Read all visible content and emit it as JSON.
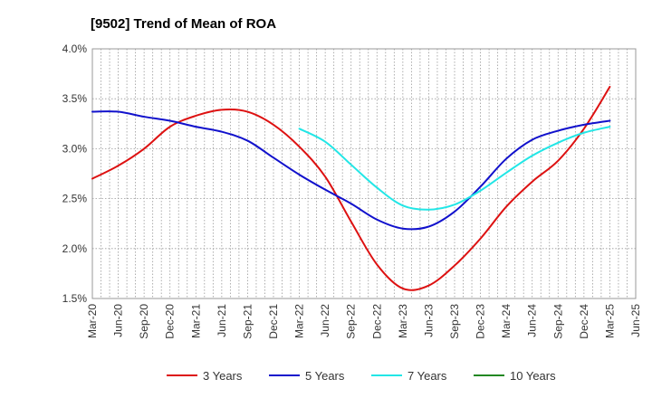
{
  "chart_data": {
    "type": "line",
    "title": "[9502]  Trend of Mean of ROA",
    "xlabel": "",
    "ylabel": "",
    "x_ticks": [
      "Mar-20",
      "Jun-20",
      "Sep-20",
      "Dec-20",
      "Mar-21",
      "Jun-21",
      "Sep-21",
      "Dec-21",
      "Mar-22",
      "Jun-22",
      "Sep-22",
      "Dec-22",
      "Mar-23",
      "Jun-23",
      "Sep-23",
      "Dec-23",
      "Mar-24",
      "Jun-24",
      "Sep-24",
      "Dec-24",
      "Mar-25",
      "Jun-25"
    ],
    "y_ticks": [
      {
        "value": 4.0,
        "label": "4.0%"
      },
      {
        "value": 3.5,
        "label": "3.5%"
      },
      {
        "value": 3.0,
        "label": "3.0%"
      },
      {
        "value": 2.5,
        "label": "2.5%"
      },
      {
        "value": 2.0,
        "label": "2.0%"
      },
      {
        "value": 1.5,
        "label": "1.5%"
      }
    ],
    "ylim": [
      1.5,
      4.0
    ],
    "xlim_months": [
      0,
      63
    ],
    "grid": true,
    "legend_position": "bottom",
    "series": [
      {
        "name": "3 Years",
        "color": "#dd1111",
        "points": [
          [
            0,
            2.7
          ],
          [
            3,
            2.83
          ],
          [
            6,
            3.0
          ],
          [
            9,
            3.22
          ],
          [
            12,
            3.33
          ],
          [
            15,
            3.39
          ],
          [
            18,
            3.37
          ],
          [
            21,
            3.24
          ],
          [
            24,
            3.02
          ],
          [
            27,
            2.72
          ],
          [
            30,
            2.27
          ],
          [
            33,
            1.84
          ],
          [
            36,
            1.6
          ],
          [
            39,
            1.63
          ],
          [
            42,
            1.83
          ],
          [
            45,
            2.1
          ],
          [
            48,
            2.42
          ],
          [
            51,
            2.67
          ],
          [
            54,
            2.88
          ],
          [
            57,
            3.2
          ],
          [
            60,
            3.62
          ]
        ]
      },
      {
        "name": "5 Years",
        "color": "#1111cc",
        "points": [
          [
            0,
            3.37
          ],
          [
            3,
            3.37
          ],
          [
            6,
            3.32
          ],
          [
            9,
            3.28
          ],
          [
            12,
            3.22
          ],
          [
            15,
            3.17
          ],
          [
            18,
            3.08
          ],
          [
            21,
            2.91
          ],
          [
            24,
            2.74
          ],
          [
            27,
            2.59
          ],
          [
            30,
            2.45
          ],
          [
            33,
            2.29
          ],
          [
            36,
            2.2
          ],
          [
            39,
            2.22
          ],
          [
            42,
            2.37
          ],
          [
            45,
            2.62
          ],
          [
            48,
            2.9
          ],
          [
            51,
            3.09
          ],
          [
            54,
            3.18
          ],
          [
            57,
            3.24
          ],
          [
            60,
            3.28
          ]
        ]
      },
      {
        "name": "7 Years",
        "color": "#22e6e6",
        "points": [
          [
            24,
            3.2
          ],
          [
            27,
            3.07
          ],
          [
            30,
            2.84
          ],
          [
            33,
            2.61
          ],
          [
            36,
            2.43
          ],
          [
            39,
            2.39
          ],
          [
            42,
            2.44
          ],
          [
            45,
            2.58
          ],
          [
            48,
            2.76
          ],
          [
            51,
            2.93
          ],
          [
            54,
            3.06
          ],
          [
            57,
            3.16
          ],
          [
            60,
            3.22
          ]
        ]
      },
      {
        "name": "10 Years",
        "color": "#228822",
        "points": []
      }
    ]
  }
}
